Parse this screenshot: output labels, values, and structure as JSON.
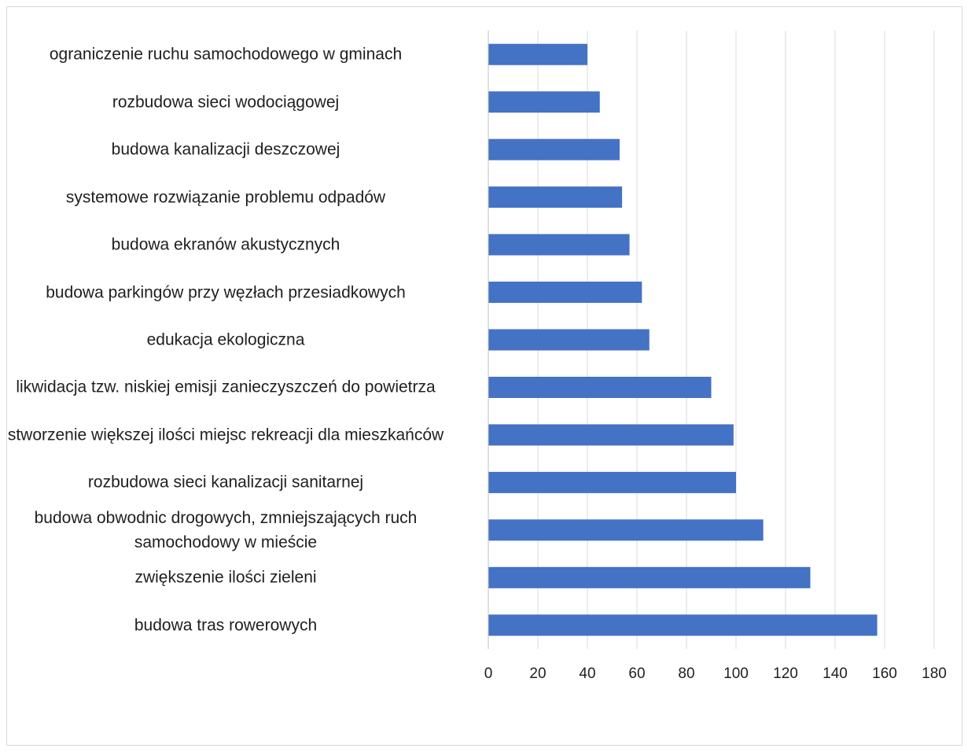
{
  "chart_data": {
    "type": "bar",
    "orientation": "horizontal",
    "categories": [
      "budowa tras rowerowych",
      "zwiększenie ilości zieleni",
      "budowa obwodnic drogowych, zmniejszających ruch samochodowy w mieście",
      "rozbudowa sieci kanalizacji sanitarnej",
      "stworzenie większej ilości miejsc rekreacji dla mieszkańców",
      "likwidacja tzw. niskiej emisji zanieczyszczeń do powietrza",
      "edukacja ekologiczna",
      "budowa parkingów przy węzłach przesiadkowych",
      "budowa ekranów akustycznych",
      "systemowe rozwiązanie problemu odpadów",
      "budowa kanalizacji deszczowej",
      "rozbudowa sieci wodociągowej",
      "ograniczenie ruchu samochodowego w gminach"
    ],
    "values": [
      157,
      130,
      111,
      100,
      99,
      90,
      65,
      62,
      57,
      54,
      53,
      45,
      40
    ],
    "xlim": [
      0,
      180
    ],
    "xticks": [
      "0",
      "20",
      "40",
      "60",
      "80",
      "100",
      "120",
      "140",
      "160",
      "180"
    ],
    "grid": true,
    "bar_color": "#4472c4",
    "title": "",
    "xlabel": "",
    "ylabel": ""
  }
}
